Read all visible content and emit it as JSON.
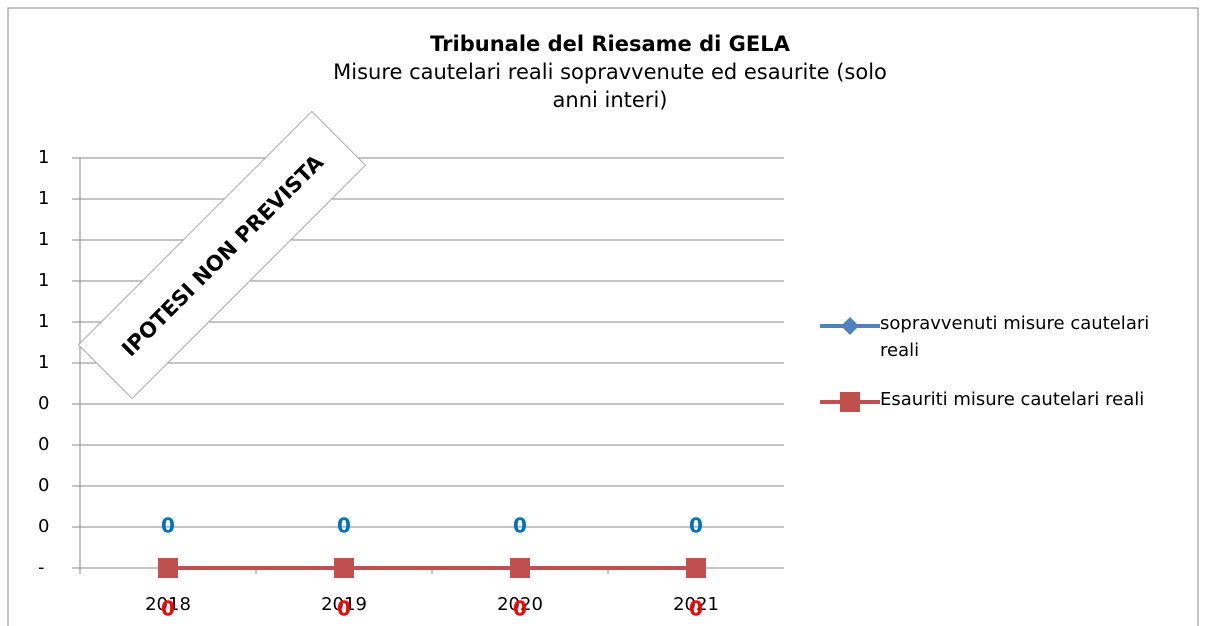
{
  "chart_data": {
    "type": "line",
    "title": "Tribunale del Riesame di GELA",
    "subtitle": "Misure cautelari reali sopravvenute ed esaurite (solo anni interi)",
    "annotation": "IPOTESI NON PREVISTA",
    "categories": [
      "2018",
      "2019",
      "2020",
      "2021"
    ],
    "series": [
      {
        "name": "sopravvenuti misure cautelari reali",
        "color": "#4f81bd",
        "label_color": "#0070c0",
        "marker": "diamond",
        "values": [
          0,
          0,
          0,
          0
        ]
      },
      {
        "name": "Esauriti misure cautelari reali",
        "color": "#c0504d",
        "label_color": "#ff0000",
        "marker": "square",
        "values": [
          0,
          0,
          0,
          0
        ]
      }
    ],
    "ylim": [
      0,
      1
    ],
    "yticks": [
      {
        "value": 0,
        "label": "-"
      },
      {
        "value": 0.1,
        "label": "0"
      },
      {
        "value": 0.2,
        "label": "0"
      },
      {
        "value": 0.3,
        "label": "0"
      },
      {
        "value": 0.4,
        "label": "0"
      },
      {
        "value": 0.5,
        "label": "1"
      },
      {
        "value": 0.6,
        "label": "1"
      },
      {
        "value": 0.7,
        "label": "1"
      },
      {
        "value": 0.8,
        "label": "1"
      },
      {
        "value": 0.9,
        "label": "1"
      },
      {
        "value": 1,
        "label": "1"
      }
    ],
    "grid": true,
    "legend": "right"
  }
}
